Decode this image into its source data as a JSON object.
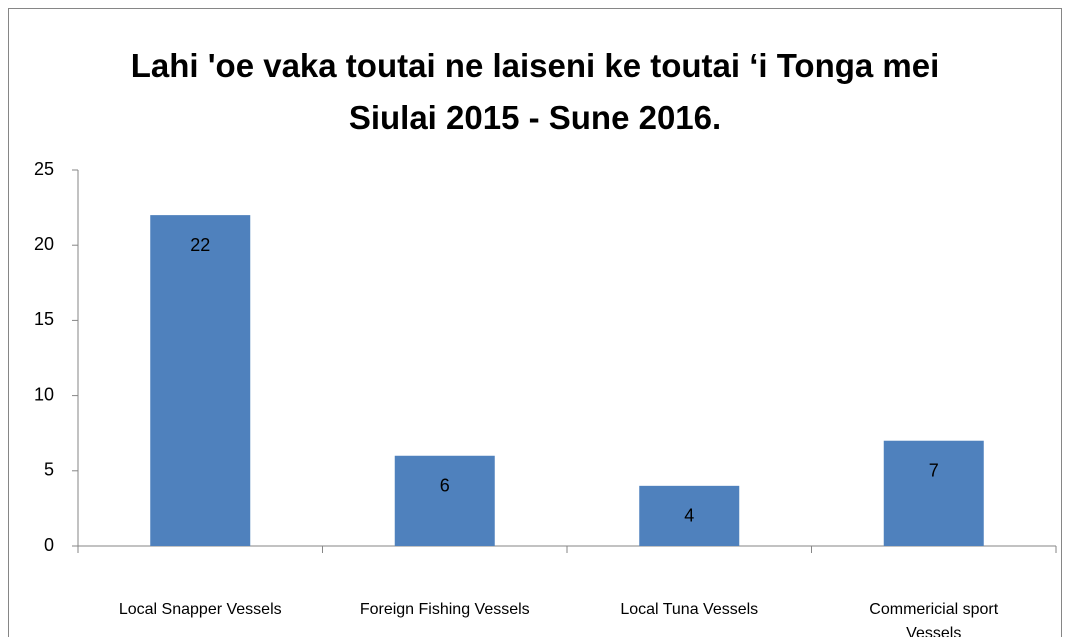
{
  "chart_data": {
    "type": "bar",
    "title": "Lahi 'oe vaka toutai ne laiseni ke toutai ‘i Tonga mei Siulai 2015 - Sune 2016.",
    "categories": [
      "Local Snapper Vessels",
      "Foreign Fishing Vessels",
      "Local Tuna Vessels",
      "Commericial sport Vessels"
    ],
    "values": [
      22,
      6,
      4,
      7
    ],
    "color": "#4f81bd",
    "ylim": [
      0,
      25
    ],
    "yticks": [
      0,
      5,
      10,
      15,
      20,
      25
    ],
    "grid": false
  }
}
